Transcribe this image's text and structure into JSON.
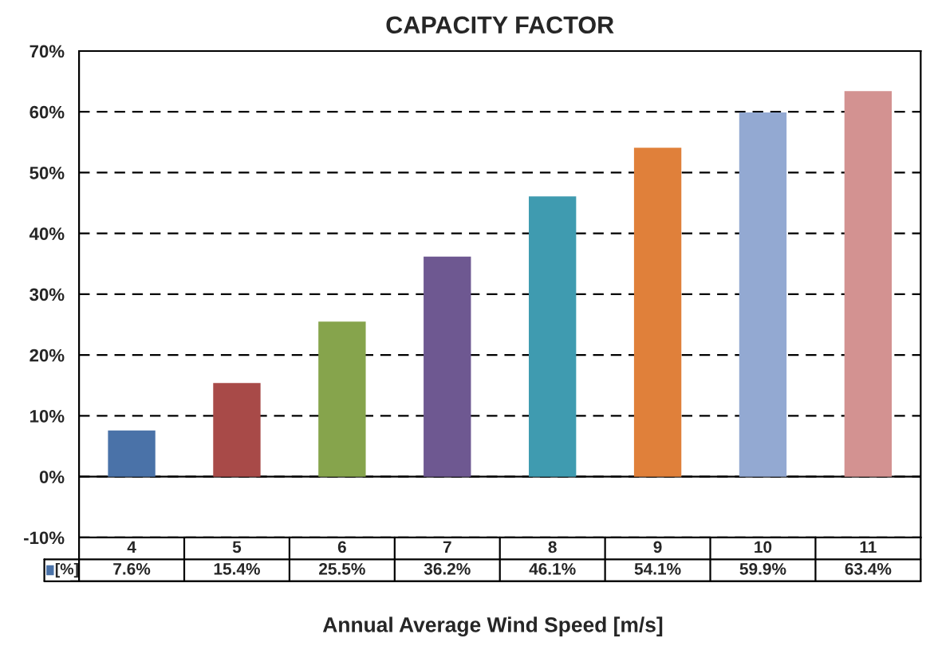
{
  "chart_data": {
    "type": "bar",
    "title": "CAPACITY FACTOR",
    "xlabel": "Annual Average Wind Speed [m/s]",
    "categories": [
      "4",
      "5",
      "6",
      "7",
      "8",
      "9",
      "10",
      "11"
    ],
    "series": [
      {
        "name": "[%]",
        "color": "#4a72a8",
        "colors": [
          "#4a72a8",
          "#a84a48",
          "#86a44c",
          "#6e5891",
          "#3f9bb0",
          "#e0803a",
          "#93a9d2",
          "#d39291"
        ],
        "values": [
          7.6,
          15.4,
          25.5,
          36.2,
          46.1,
          54.1,
          59.9,
          63.4
        ],
        "value_labels": [
          "7.6%",
          "15.4%",
          "25.5%",
          "36.2%",
          "46.1%",
          "54.1%",
          "59.9%",
          "63.4%"
        ]
      }
    ],
    "ylim": [
      -10,
      70
    ],
    "yticks": [
      {
        "value": -10,
        "label": "-10%"
      },
      {
        "value": 0,
        "label": "0%"
      },
      {
        "value": 10,
        "label": "10%"
      },
      {
        "value": 20,
        "label": "20%"
      },
      {
        "value": 30,
        "label": "30%"
      },
      {
        "value": 40,
        "label": "40%"
      },
      {
        "value": 50,
        "label": "50%"
      },
      {
        "value": 60,
        "label": "60%"
      },
      {
        "value": 70,
        "label": "70%"
      }
    ],
    "grid": "y",
    "legend": "bottom left"
  }
}
